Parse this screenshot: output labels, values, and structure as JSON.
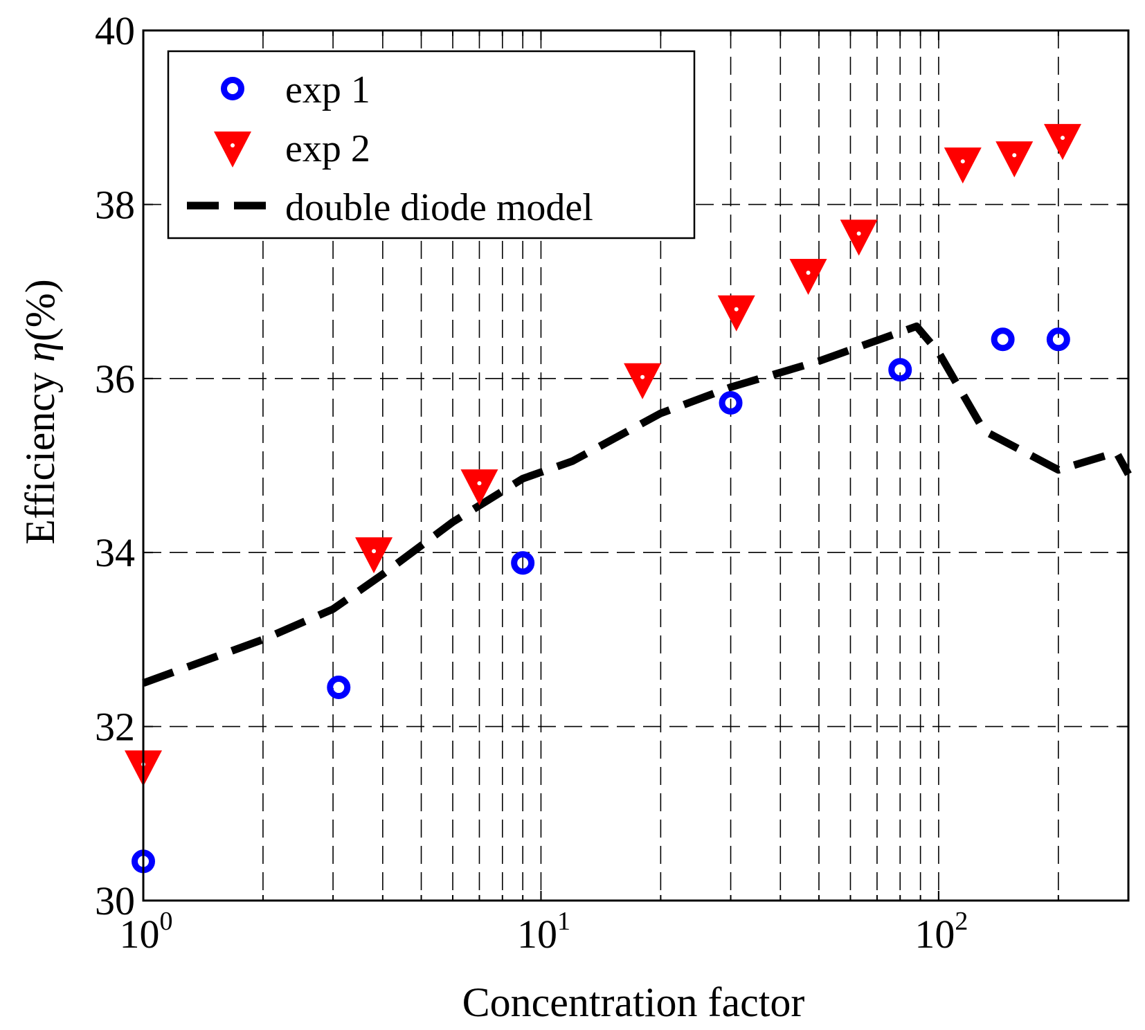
{
  "chart_data": {
    "type": "scatter",
    "xscale": "log",
    "xlabel": "Concentration factor",
    "ylabel": "Efficiency η(%)",
    "ylabel_prefix": "Efficiency ",
    "ylabel_symbol": "η",
    "ylabel_suffix": "(%)",
    "xlim": [
      1,
      300
    ],
    "ylim": [
      30,
      40
    ],
    "grid": true,
    "legend_position": "top-left",
    "x_ticks": [
      {
        "value": 1,
        "base": "10",
        "exp": "0"
      },
      {
        "value": 10,
        "base": "10",
        "exp": "1"
      },
      {
        "value": 100,
        "base": "10",
        "exp": "2"
      }
    ],
    "y_ticks": [
      30,
      32,
      34,
      36,
      38,
      40
    ],
    "y_tick_labels": [
      "30",
      "32",
      "34",
      "36",
      "38",
      "40"
    ],
    "series": [
      {
        "name": "exp 1",
        "marker": "circle",
        "color": "#0000ff",
        "x": [
          1,
          3.1,
          9,
          30,
          80,
          145,
          200
        ],
        "y": [
          30.45,
          32.45,
          33.88,
          35.72,
          36.1,
          36.45,
          36.45
        ]
      },
      {
        "name": "exp 2",
        "marker": "triangle-down",
        "color": "#ff0000",
        "x": [
          1,
          3.8,
          7,
          18,
          31,
          47,
          63,
          115,
          155,
          205
        ],
        "y": [
          31.55,
          34.0,
          34.78,
          36.0,
          36.78,
          37.2,
          37.65,
          38.48,
          38.55,
          38.75
        ]
      },
      {
        "name": "double diode model",
        "marker": "none",
        "line_style": "dashed",
        "color": "#000000",
        "x": [
          1,
          2,
          3,
          4,
          6,
          9,
          12,
          20,
          30,
          50,
          88,
          100,
          130,
          200,
          280,
          300
        ],
        "y": [
          32.5,
          33.0,
          33.35,
          33.75,
          34.35,
          34.85,
          35.05,
          35.6,
          35.9,
          36.2,
          36.6,
          36.3,
          35.4,
          34.95,
          35.15,
          34.9
        ]
      }
    ]
  }
}
